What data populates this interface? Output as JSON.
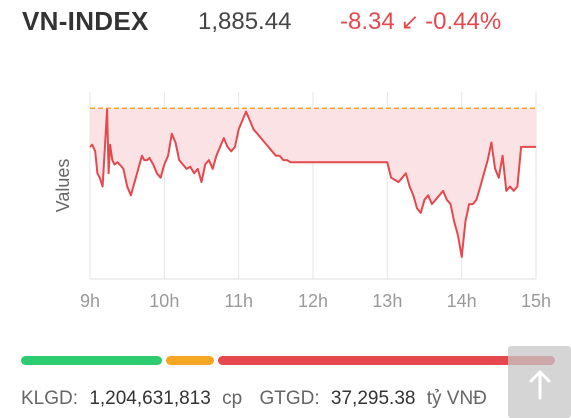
{
  "header": {
    "title": "VN-INDEX",
    "price": "1,885.44",
    "change": "-8.34",
    "change_percent": "-0.44%",
    "direction_icon": "arrow-down-left-icon",
    "down_color": "#e5484d"
  },
  "chart_data": {
    "type": "area",
    "ylabel": "Values",
    "xlabel": "",
    "x_ticks": [
      "9h",
      "10h",
      "11h",
      "12h",
      "13h",
      "14h",
      "15h"
    ],
    "reference_value": 1893.78,
    "reference_line_color": "#f5a623",
    "line_color": "#e5484d",
    "fill_color": "#fbe3e5",
    "ylim": [
      1855,
      1902
    ],
    "series": [
      {
        "x": [
          9.0,
          9.03,
          9.07,
          9.1,
          9.13,
          9.17,
          9.23,
          9.25,
          9.27,
          9.3,
          9.33,
          9.37,
          9.4,
          9.45,
          9.5,
          9.55,
          9.6,
          9.65,
          9.7,
          9.73,
          9.77,
          9.8,
          9.85,
          9.9,
          9.95,
          10.0,
          10.05,
          10.1,
          10.15,
          10.2,
          10.25,
          10.3,
          10.35,
          10.4,
          10.45,
          10.5,
          10.55,
          10.6,
          10.65,
          10.7,
          10.75,
          10.8,
          10.85,
          10.9,
          10.95,
          11.0,
          11.05,
          11.1,
          11.15,
          11.2,
          11.25,
          11.3,
          11.35,
          11.4,
          11.45,
          11.5,
          11.55,
          11.6,
          11.65,
          11.7,
          12.0,
          12.5,
          13.0,
          13.05,
          13.1,
          13.15,
          13.2,
          13.25,
          13.3,
          13.35,
          13.4,
          13.45,
          13.5,
          13.55,
          13.6,
          13.65,
          13.7,
          13.75,
          13.8,
          13.85,
          13.9,
          13.95,
          14.0,
          14.05,
          14.1,
          14.15,
          14.2,
          14.25,
          14.3,
          14.35,
          14.4,
          14.45,
          14.5,
          14.55,
          14.6,
          14.65,
          14.7,
          14.75,
          14.8,
          15.0
        ],
        "values": [
          1885,
          1885.5,
          1884,
          1879,
          1878,
          1876,
          1893.5,
          1879,
          1885.5,
          1882,
          1881,
          1881.5,
          1881,
          1880,
          1876,
          1874,
          1877,
          1880,
          1883,
          1882,
          1882,
          1882.5,
          1881,
          1879,
          1878,
          1881,
          1883,
          1888,
          1886,
          1882,
          1881,
          1880,
          1880.5,
          1879,
          1880,
          1877,
          1881,
          1882,
          1880,
          1883,
          1885,
          1887,
          1885,
          1884,
          1885,
          1889,
          1891,
          1893,
          1891,
          1889,
          1888,
          1887,
          1886,
          1885,
          1884,
          1883,
          1883,
          1882,
          1882,
          1881.5,
          1881.5,
          1881.5,
          1881.5,
          1878,
          1877.5,
          1877,
          1878,
          1879,
          1876,
          1874,
          1871,
          1870,
          1873,
          1874,
          1872,
          1873,
          1874,
          1875,
          1873,
          1872,
          1868,
          1865,
          1860,
          1868,
          1872,
          1872,
          1873,
          1876,
          1879,
          1882,
          1886,
          1880,
          1878,
          1883,
          1875,
          1876,
          1875,
          1876,
          1885,
          1885
        ]
      }
    ]
  },
  "progress_bar": {
    "green_color": "#2ecc71",
    "yellow_color": "#f5a623",
    "red_color": "#e5484d"
  },
  "footer": {
    "volume_label": "KLGD:",
    "volume_value": "1,204,631,813",
    "volume_unit": "cp",
    "value_label": "GTGD:",
    "value_value": "37,295.38",
    "value_unit": "tỷ VNĐ"
  },
  "scroll_top_icon": "arrow-up-icon"
}
